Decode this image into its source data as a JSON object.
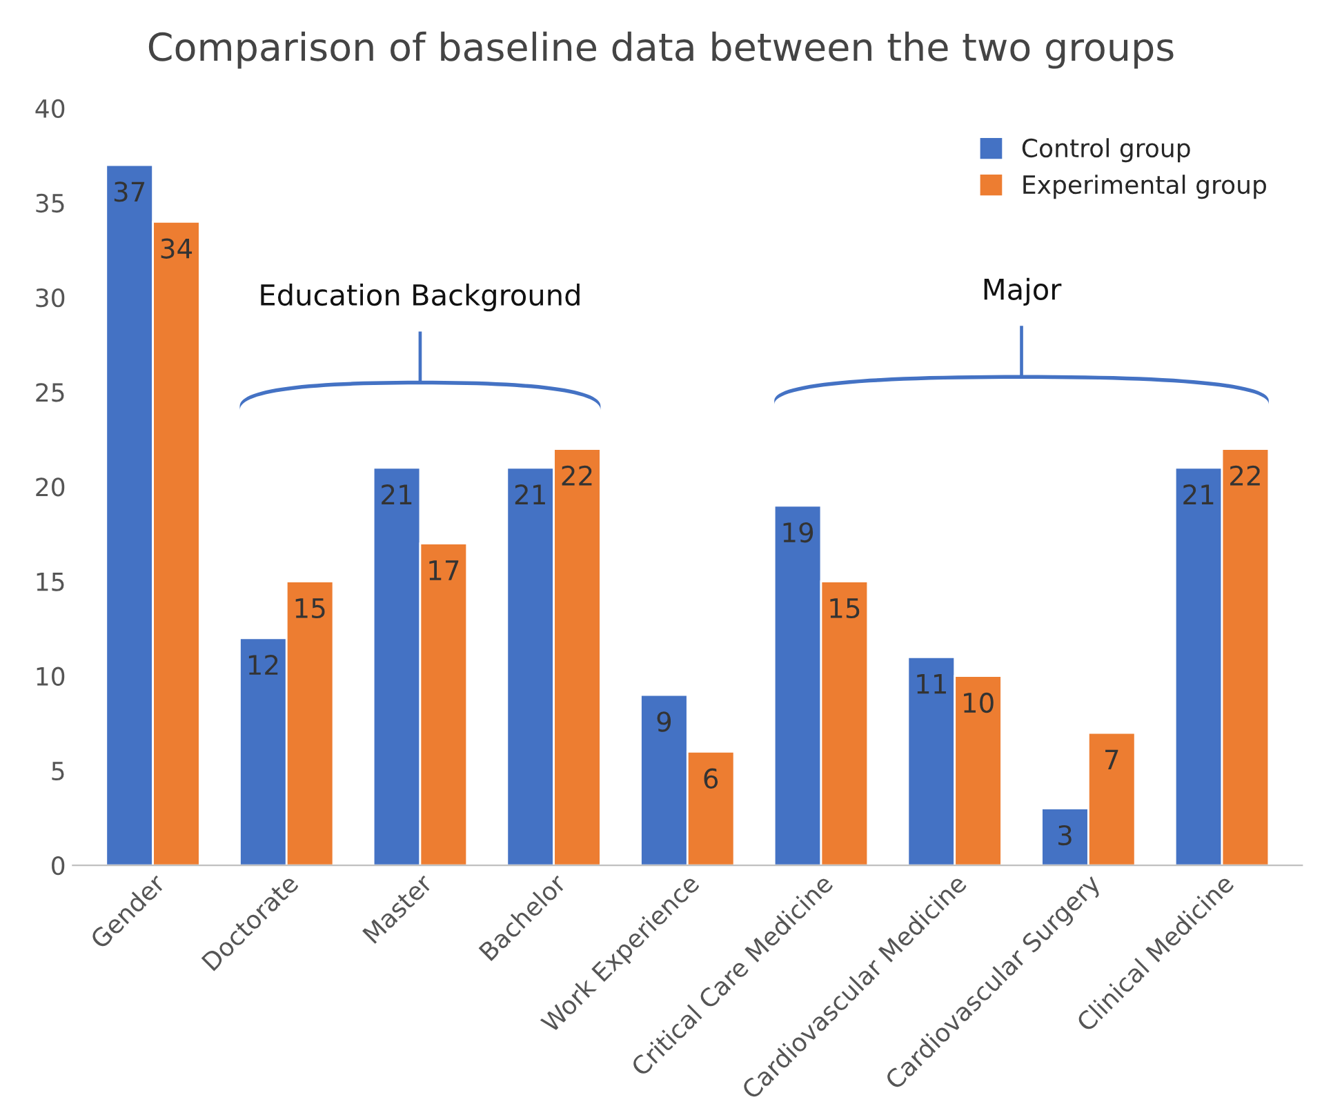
{
  "chart_data": {
    "type": "bar",
    "title": "Comparison of baseline data between the two groups",
    "categories": [
      "Gender",
      "Doctorate",
      "Master",
      "Bachelor",
      "Work Experience",
      "Critical Care Medicine",
      "Cardiovascular Medicine",
      "Cardiovascular Surgery",
      "Clinical Medicine"
    ],
    "series": [
      {
        "name": "Control group",
        "color": "#4472c4",
        "values": [
          37,
          12,
          21,
          21,
          9,
          19,
          11,
          3,
          21
        ]
      },
      {
        "name": "Experimental group",
        "color": "#ed7d31",
        "values": [
          34,
          15,
          17,
          22,
          6,
          15,
          10,
          7,
          22
        ]
      }
    ],
    "ylim": [
      0,
      40
    ],
    "yticks": [
      0,
      5,
      10,
      15,
      20,
      25,
      30,
      35,
      40
    ],
    "annotations": [
      "Education Background",
      "Major"
    ],
    "data_labels": true,
    "grid": false,
    "legend": "top right"
  }
}
